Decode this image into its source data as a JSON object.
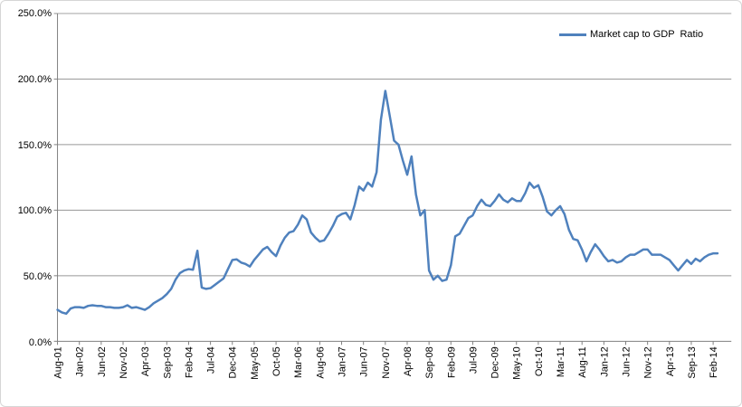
{
  "legend": {
    "label": "Market cap to GDP  Ratio",
    "line_color": "#4F81BD"
  },
  "y_axis": {
    "labels": [
      "250.0%",
      "200.0%",
      "150.0%",
      "100.0%",
      "50.0%",
      "0.0%"
    ],
    "min": 0,
    "max": 250,
    "step": 50
  },
  "x_axis": {
    "tick_labels": [
      "Aug-01",
      "Jan-02",
      "Jun-02",
      "Nov-02",
      "Apr-03",
      "Sep-03",
      "Feb-04",
      "Jul-04",
      "Dec-04",
      "May-05",
      "Oct-05",
      "Mar-06",
      "Aug-06",
      "Jan-07",
      "Jun-07",
      "Nov-07",
      "Apr-08",
      "Sep-08",
      "Feb-09",
      "Jul-09",
      "Dec-09",
      "May-10",
      "Oct-10",
      "Mar-11",
      "Aug-11",
      "Jan-12",
      "Jun-12",
      "Nov-12",
      "Apr-13",
      "Sep-13",
      "Feb-14"
    ],
    "tick_interval_months": 5
  },
  "chart_data": {
    "type": "line",
    "title": "",
    "xlabel": "",
    "ylabel": "",
    "ylim": [
      0,
      250
    ],
    "y_tick_format": "percent_one_decimal",
    "grid": true,
    "legend_position": "top-right",
    "series": [
      {
        "name": "Market cap to GDP  Ratio",
        "color": "#4F81BD"
      }
    ],
    "x": [
      "Aug-01",
      "Sep-01",
      "Oct-01",
      "Nov-01",
      "Dec-01",
      "Jan-02",
      "Feb-02",
      "Mar-02",
      "Apr-02",
      "May-02",
      "Jun-02",
      "Jul-02",
      "Aug-02",
      "Sep-02",
      "Oct-02",
      "Nov-02",
      "Dec-02",
      "Jan-03",
      "Feb-03",
      "Mar-03",
      "Apr-03",
      "May-03",
      "Jun-03",
      "Jul-03",
      "Aug-03",
      "Sep-03",
      "Oct-03",
      "Nov-03",
      "Dec-03",
      "Jan-04",
      "Feb-04",
      "Mar-04",
      "Apr-04",
      "May-04",
      "Jun-04",
      "Jul-04",
      "Aug-04",
      "Sep-04",
      "Oct-04",
      "Nov-04",
      "Dec-04",
      "Jan-05",
      "Feb-05",
      "Mar-05",
      "Apr-05",
      "May-05",
      "Jun-05",
      "Jul-05",
      "Aug-05",
      "Sep-05",
      "Oct-05",
      "Nov-05",
      "Dec-05",
      "Jan-06",
      "Feb-06",
      "Mar-06",
      "Apr-06",
      "May-06",
      "Jun-06",
      "Jul-06",
      "Aug-06",
      "Sep-06",
      "Oct-06",
      "Nov-06",
      "Dec-06",
      "Jan-07",
      "Feb-07",
      "Mar-07",
      "Apr-07",
      "May-07",
      "Jun-07",
      "Jul-07",
      "Aug-07",
      "Sep-07",
      "Oct-07",
      "Nov-07",
      "Dec-07",
      "Jan-08",
      "Feb-08",
      "Mar-08",
      "Apr-08",
      "May-08",
      "Jun-08",
      "Jul-08",
      "Aug-08",
      "Sep-08",
      "Oct-08",
      "Nov-08",
      "Dec-08",
      "Jan-09",
      "Feb-09",
      "Mar-09",
      "Apr-09",
      "May-09",
      "Jun-09",
      "Jul-09",
      "Aug-09",
      "Sep-09",
      "Oct-09",
      "Nov-09",
      "Dec-09",
      "Jan-10",
      "Feb-10",
      "Mar-10",
      "Apr-10",
      "May-10",
      "Jun-10",
      "Jul-10",
      "Aug-10",
      "Sep-10",
      "Oct-10",
      "Nov-10",
      "Dec-10",
      "Jan-11",
      "Feb-11",
      "Mar-11",
      "Apr-11",
      "May-11",
      "Jun-11",
      "Jul-11",
      "Aug-11",
      "Sep-11",
      "Oct-11",
      "Nov-11",
      "Dec-11",
      "Jan-12",
      "Feb-12",
      "Mar-12",
      "Apr-12",
      "May-12",
      "Jun-12",
      "Jul-12",
      "Aug-12",
      "Sep-12",
      "Oct-12",
      "Nov-12",
      "Dec-12",
      "Jan-13",
      "Feb-13",
      "Mar-13",
      "Apr-13",
      "May-13",
      "Jun-13",
      "Jul-13",
      "Aug-13",
      "Sep-13",
      "Oct-13",
      "Nov-13",
      "Dec-13",
      "Jan-14",
      "Feb-14",
      "Mar-14"
    ],
    "values": [
      24,
      22,
      21,
      25,
      26,
      26,
      25.5,
      27,
      27.5,
      27,
      27,
      26,
      26,
      25.5,
      25.5,
      26,
      27.5,
      25.5,
      26,
      25,
      24,
      26,
      29,
      31,
      33,
      36,
      40,
      47,
      52,
      54,
      55,
      54.5,
      69,
      41,
      40,
      40.5,
      43,
      45.5,
      48,
      55,
      62,
      62.5,
      60,
      59,
      57,
      62,
      66,
      70,
      72,
      68,
      65,
      73,
      79,
      83,
      84,
      89,
      96,
      93,
      83,
      79,
      76,
      77,
      82,
      88,
      95,
      97,
      98,
      93,
      104,
      118,
      115,
      121,
      118,
      129,
      169,
      191,
      172,
      153,
      150,
      138,
      127,
      141,
      112,
      96,
      100,
      54,
      47,
      50,
      46,
      47,
      58,
      80,
      82,
      88,
      94,
      96,
      103,
      108,
      104,
      103,
      107,
      112,
      108,
      106,
      109,
      107,
      107,
      113,
      121,
      117,
      119,
      110,
      99,
      96,
      100,
      103,
      97,
      85,
      78,
      77,
      70,
      61,
      68,
      74,
      70,
      65,
      61,
      62,
      60,
      61,
      64,
      66,
      66,
      68,
      70,
      70,
      66,
      66,
      66,
      64,
      62,
      58,
      54,
      58,
      62,
      59,
      63,
      61,
      64,
      66,
      67,
      67
    ],
    "colors": {
      "series": "#4F81BD",
      "gridline": "#969696",
      "axis": "#808080"
    }
  }
}
